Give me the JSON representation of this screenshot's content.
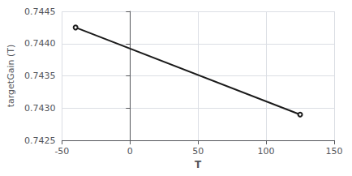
{
  "chart_data": {
    "type": "line",
    "x": [
      -40,
      125
    ],
    "values": [
      0.74425,
      0.7429
    ],
    "color": "#1a1a1a",
    "xlabel": "T",
    "ylabel": "targetGain (T)",
    "xlim": [
      -50,
      150
    ],
    "ylim": [
      0.7425,
      0.7445
    ],
    "xticks": [
      -50,
      0,
      50,
      100,
      150
    ],
    "yticks": [
      0.7425,
      {
        "value": 0.743,
        "label": "0.7430"
      },
      0.7435,
      {
        "value": 0.744,
        "label": "0.7440"
      },
      0.7445
    ],
    "grid": true
  }
}
